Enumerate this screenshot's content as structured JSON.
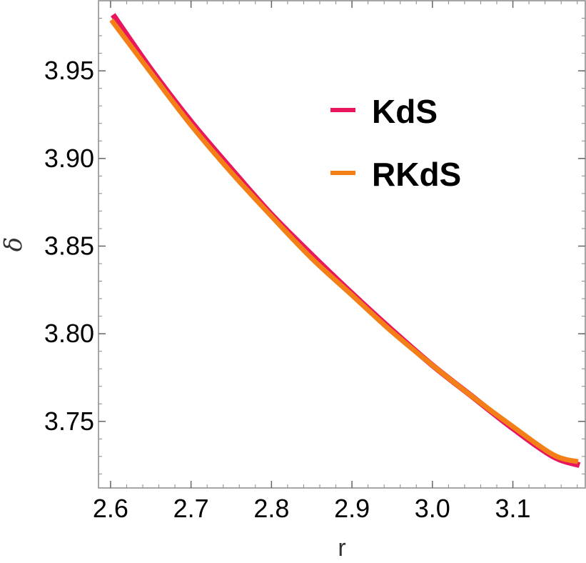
{
  "chart_data": {
    "type": "line",
    "title": "",
    "xlabel": "r",
    "ylabel": "δ",
    "xlim": [
      2.585,
      3.19
    ],
    "ylim": [
      3.712,
      3.99
    ],
    "xticks": [
      2.6,
      2.7,
      2.8,
      2.9,
      3.0,
      3.1
    ],
    "xtick_labels": [
      "2.6",
      "2.7",
      "2.8",
      "2.9",
      "3.0",
      "3.1"
    ],
    "yticks": [
      3.75,
      3.8,
      3.85,
      3.9,
      3.95
    ],
    "ytick_labels": [
      "3.75",
      "3.80",
      "3.85",
      "3.90",
      "3.95"
    ],
    "grid": false,
    "legend_position": "top-right",
    "series": [
      {
        "name": "KdS",
        "color": "#e8175d",
        "x": [
          2.603,
          2.65,
          2.7,
          2.75,
          2.8,
          2.85,
          2.9,
          2.95,
          3.0,
          3.05,
          3.1,
          3.15,
          3.183
        ],
        "y": [
          3.982,
          3.951,
          3.921,
          3.894,
          3.868,
          3.845,
          3.823,
          3.802,
          3.782,
          3.764,
          3.746,
          3.73,
          3.725
        ]
      },
      {
        "name": "RKdS",
        "color": "#f57f17",
        "x": [
          2.601,
          2.65,
          2.7,
          2.75,
          2.8,
          2.85,
          2.9,
          2.95,
          3.0,
          3.05,
          3.1,
          3.15,
          3.181
        ],
        "y": [
          3.979,
          3.949,
          3.919,
          3.892,
          3.867,
          3.843,
          3.822,
          3.801,
          3.782,
          3.764,
          3.747,
          3.731,
          3.727
        ]
      }
    ]
  }
}
